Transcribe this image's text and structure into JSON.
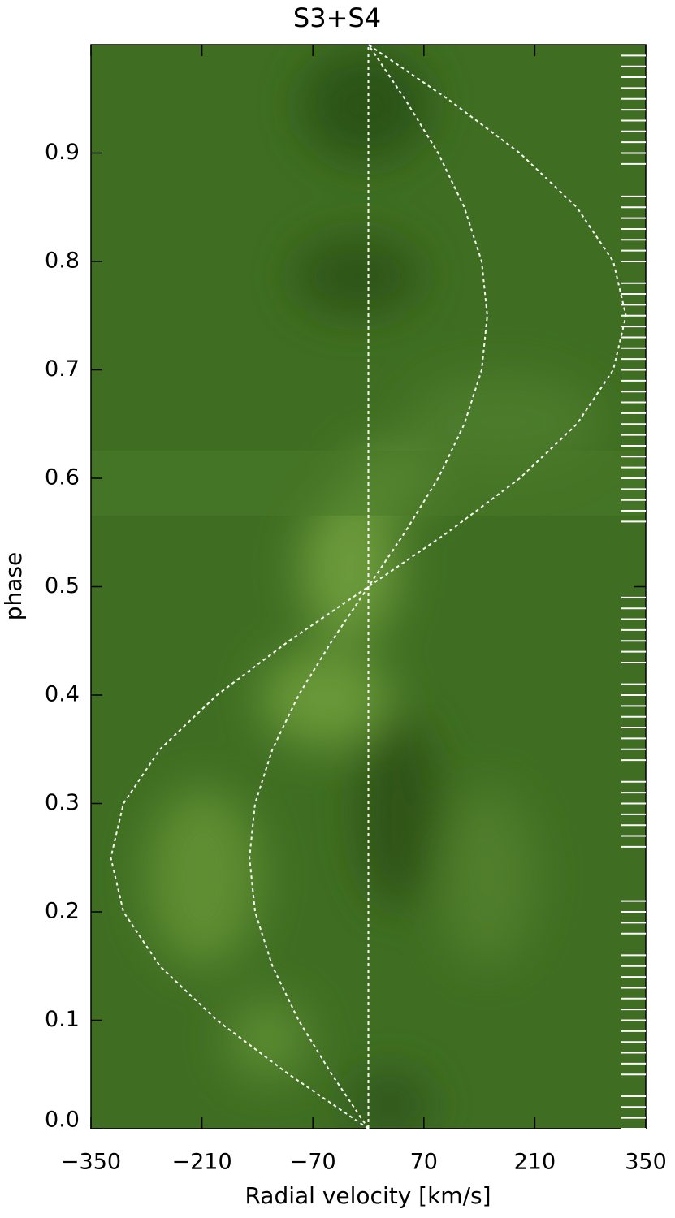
{
  "chart_data": {
    "type": "trailed_spectrogram",
    "title": "S3+S4",
    "xlabel": "Radial velocity [km/s]",
    "ylabel": "phase",
    "xlim": [
      -350,
      350
    ],
    "ylim": [
      0,
      1
    ],
    "xticks": [
      {
        "value": -350,
        "label": "−350"
      },
      {
        "value": -210,
        "label": "−210"
      },
      {
        "value": -70,
        "label": "−70"
      },
      70,
      210,
      350
    ],
    "yticks": [
      {
        "value": 0,
        "label": "0.0"
      },
      0.1,
      0.2,
      0.3,
      0.4,
      0.5,
      0.6,
      0.7,
      0.8,
      0.9
    ],
    "curve_color": "#ffffff",
    "curves": [
      {
        "y": [
          0,
          0.05,
          0.1,
          0.15,
          0.2,
          0.25,
          0.3,
          0.35,
          0.4,
          0.45,
          0.5,
          0.55,
          0.6,
          0.65,
          0.7,
          0.75,
          0.8,
          0.85,
          0.9,
          0.95,
          1
        ],
        "x": [
          0,
          -100,
          -191,
          -263,
          -309,
          -325,
          -309,
          -263,
          -191,
          -100,
          0,
          100,
          191,
          263,
          309,
          325,
          309,
          263,
          191,
          100,
          0
        ]
      },
      {
        "y": [
          0,
          0.05,
          0.1,
          0.15,
          0.2,
          0.25,
          0.3,
          0.35,
          0.4,
          0.45,
          0.5,
          0.55,
          0.6,
          0.65,
          0.7,
          0.75,
          0.8,
          0.85,
          0.9,
          0.95,
          1
        ],
        "x": [
          0,
          -46,
          -88,
          -121,
          -143,
          -150,
          -143,
          -121,
          -88,
          -46,
          0,
          46,
          88,
          121,
          143,
          150,
          143,
          121,
          88,
          46,
          0
        ]
      },
      {
        "y": [
          0,
          1
        ],
        "x": [
          0,
          0
        ]
      }
    ],
    "observed_phases": [
      0.0,
      0.01,
      0.02,
      0.03,
      0.05,
      0.06,
      0.07,
      0.08,
      0.09,
      0.1,
      0.11,
      0.12,
      0.13,
      0.14,
      0.15,
      0.16,
      0.18,
      0.19,
      0.2,
      0.21,
      0.26,
      0.27,
      0.28,
      0.29,
      0.3,
      0.31,
      0.32,
      0.34,
      0.35,
      0.36,
      0.37,
      0.38,
      0.39,
      0.4,
      0.41,
      0.43,
      0.44,
      0.45,
      0.46,
      0.47,
      0.48,
      0.49,
      0.56,
      0.57,
      0.58,
      0.59,
      0.6,
      0.61,
      0.62,
      0.63,
      0.64,
      0.65,
      0.66,
      0.67,
      0.68,
      0.69,
      0.7,
      0.71,
      0.72,
      0.73,
      0.74,
      0.75,
      0.76,
      0.77,
      0.78,
      0.8,
      0.81,
      0.82,
      0.83,
      0.84,
      0.85,
      0.86,
      0.89,
      0.9,
      0.91,
      0.92,
      0.93,
      0.94,
      0.95,
      0.96,
      0.97,
      0.98,
      0.99
    ]
  }
}
